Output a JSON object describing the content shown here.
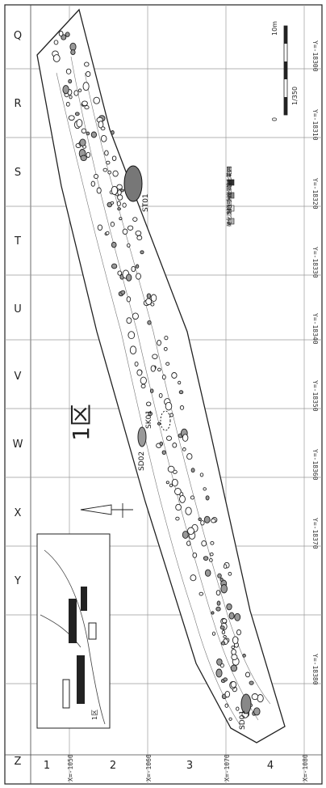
{
  "grid": {
    "columns": [
      "Q",
      "R",
      "S",
      "T",
      "U",
      "V",
      "W",
      "X",
      "Y",
      "Z"
    ],
    "rows": [
      "1",
      "2",
      "3",
      "4"
    ]
  },
  "area_label": "1区",
  "feature_labels": [
    "ST01",
    "SK01",
    "SD02",
    "SD01"
  ],
  "coord_labels_y": [
    "Y=-18300",
    "Y=-18310",
    "Y=-18320",
    "Y=-18330",
    "Y=-18340",
    "Y=-18350",
    "Y=-18360",
    "Y=-18370",
    "Y=-18380"
  ],
  "coord_labels_x": [
    "X=-1050",
    "X=-1060",
    "X=-1070",
    "X=-1080"
  ],
  "legend": [
    {
      "label": "焼土範囲",
      "color": "#333333"
    },
    {
      "label": "粘土範囲",
      "color": "#8a8a8a"
    },
    {
      "label": "粘土小塊を含む範囲",
      "color": "#e6e6e6"
    },
    {
      "label": "硬化面範囲",
      "color": "#b5b5b5"
    }
  ],
  "scale": {
    "zero": "0",
    "max": "10m",
    "ratio": "1/350"
  },
  "inset": {
    "label": "1区"
  }
}
